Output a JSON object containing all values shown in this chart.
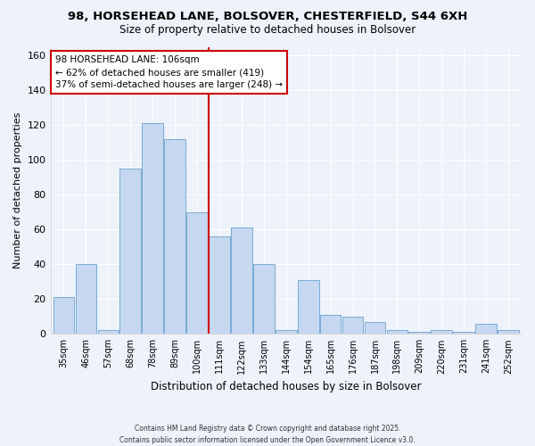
{
  "title": "98, HORSEHEAD LANE, BOLSOVER, CHESTERFIELD, S44 6XH",
  "subtitle": "Size of property relative to detached houses in Bolsover",
  "xlabel": "Distribution of detached houses by size in Bolsover",
  "ylabel": "Number of detached properties",
  "bar_labels": [
    "35sqm",
    "46sqm",
    "57sqm",
    "68sqm",
    "78sqm",
    "89sqm",
    "100sqm",
    "111sqm",
    "122sqm",
    "133sqm",
    "144sqm",
    "154sqm",
    "165sqm",
    "176sqm",
    "187sqm",
    "198sqm",
    "209sqm",
    "220sqm",
    "231sqm",
    "241sqm",
    "252sqm"
  ],
  "bar_values": [
    21,
    40,
    2,
    95,
    121,
    112,
    70,
    56,
    61,
    40,
    2,
    31,
    11,
    10,
    7,
    2,
    1,
    2,
    1,
    6,
    2
  ],
  "bar_color": "#c5d8f0",
  "bar_edge_color": "#7aaad4",
  "vline_index": 6.5,
  "vline_color": "#cc0000",
  "annotation_title": "98 HORSEHEAD LANE: 106sqm",
  "annotation_line1": "← 62% of detached houses are smaller (419)",
  "annotation_line2": "37% of semi-detached houses are larger (248) →",
  "annotation_box_color": "#ffffff",
  "annotation_box_edge": "#cc0000",
  "ylim": [
    0,
    165
  ],
  "yticks": [
    0,
    20,
    40,
    60,
    80,
    100,
    120,
    140,
    160
  ],
  "footer1": "Contains HM Land Registry data © Crown copyright and database right 2025.",
  "footer2": "Contains public sector information licensed under the Open Government Licence v3.0.",
  "bg_color": "#eef2fb"
}
